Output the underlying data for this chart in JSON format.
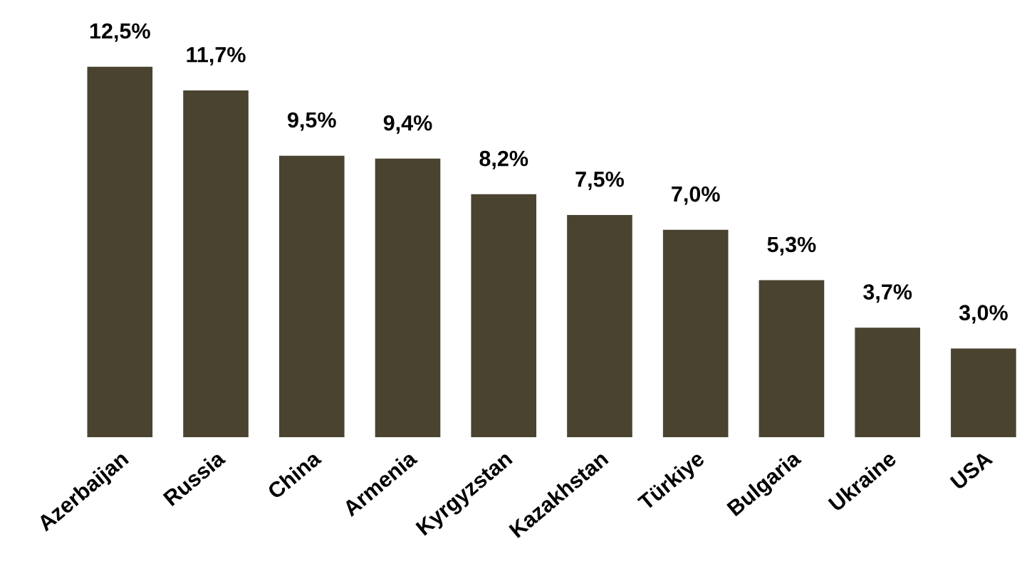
{
  "chart_data": {
    "type": "bar",
    "categories": [
      "Azerbaijan",
      "Russia",
      "China",
      "Armenia",
      "Kyrgyzstan",
      "Kazakhstan",
      "Türkiye",
      "Bulgaria",
      "Ukraine",
      "USA"
    ],
    "values": [
      12.5,
      11.7,
      9.5,
      9.4,
      8.2,
      7.5,
      7.0,
      5.3,
      3.7,
      3.0
    ],
    "value_labels": [
      "12,5%",
      "11,7%",
      "9,5%",
      "9,4%",
      "8,2%",
      "7,5%",
      "7,0%",
      "5,3%",
      "3,7%",
      "3,0%"
    ],
    "color": "#4a4330",
    "grid": false,
    "legend": false
  }
}
